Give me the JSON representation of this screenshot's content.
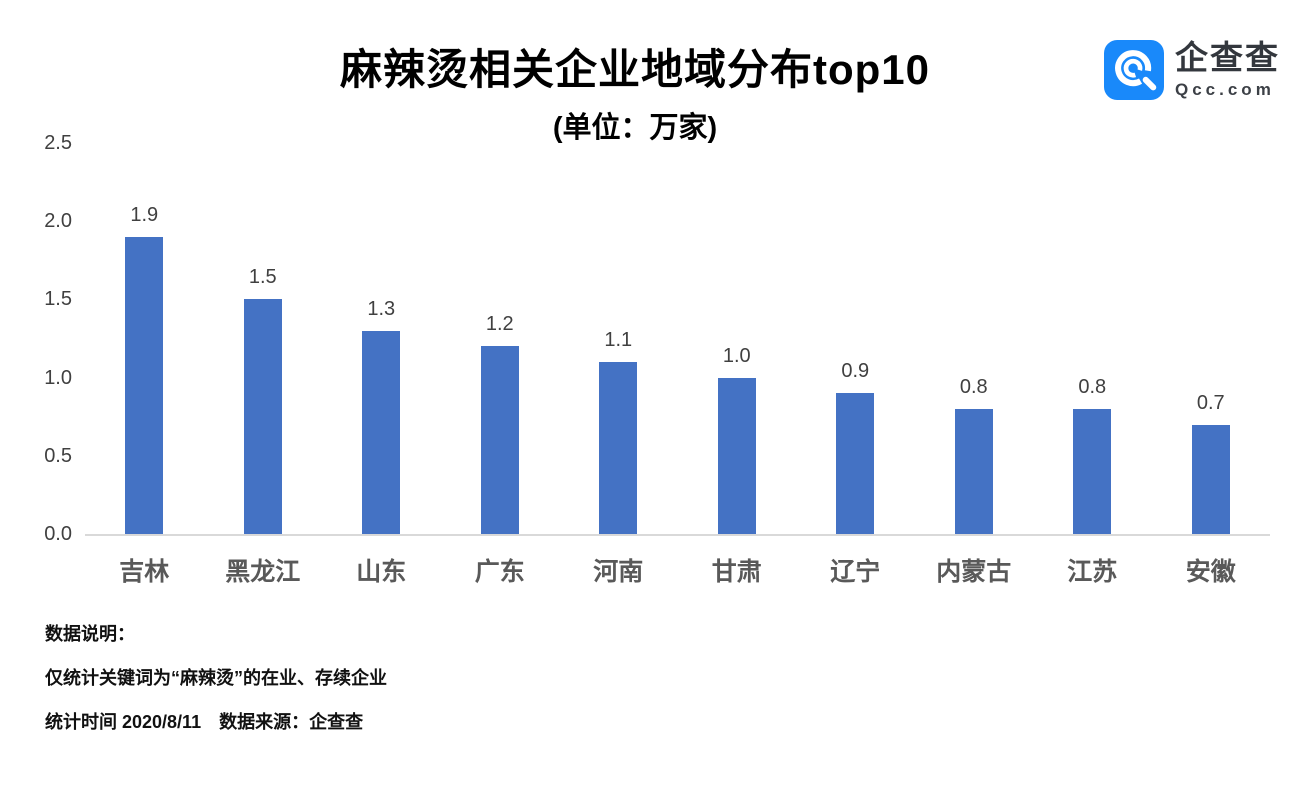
{
  "header": {
    "logo": {
      "brand_cn": "企查查",
      "brand_en": "Qcc.com",
      "icon_color": "#1989fa"
    }
  },
  "chart_data": {
    "type": "bar",
    "title": "麻辣烫相关企业地域分布top10",
    "subtitle": "(单位：万家)",
    "categories": [
      "吉林",
      "黑龙江",
      "山东",
      "广东",
      "河南",
      "甘肃",
      "辽宁",
      "内蒙古",
      "江苏",
      "安徽"
    ],
    "values": [
      1.9,
      1.5,
      1.3,
      1.2,
      1.1,
      1.0,
      0.9,
      0.8,
      0.8,
      0.7
    ],
    "value_labels": [
      "1.9",
      "1.5",
      "1.3",
      "1.2",
      "1.1",
      "1.0",
      "0.9",
      "0.8",
      "0.8",
      "0.7"
    ],
    "xlabel": "",
    "ylabel": "",
    "ylim": [
      0,
      2.5
    ],
    "yticks": [
      "0.0",
      "0.5",
      "1.0",
      "1.5",
      "2.0",
      "2.5"
    ],
    "grid": false,
    "legend": null,
    "bar_color": "#4472c4",
    "axis_line_color": "#d9d9d9"
  },
  "footer": {
    "note_title": "数据说明：",
    "note_line1": "仅统计关键词为“麻辣烫”的在业、存续企业",
    "note_line2": "统计时间 2020/8/11　数据来源：企查查"
  }
}
